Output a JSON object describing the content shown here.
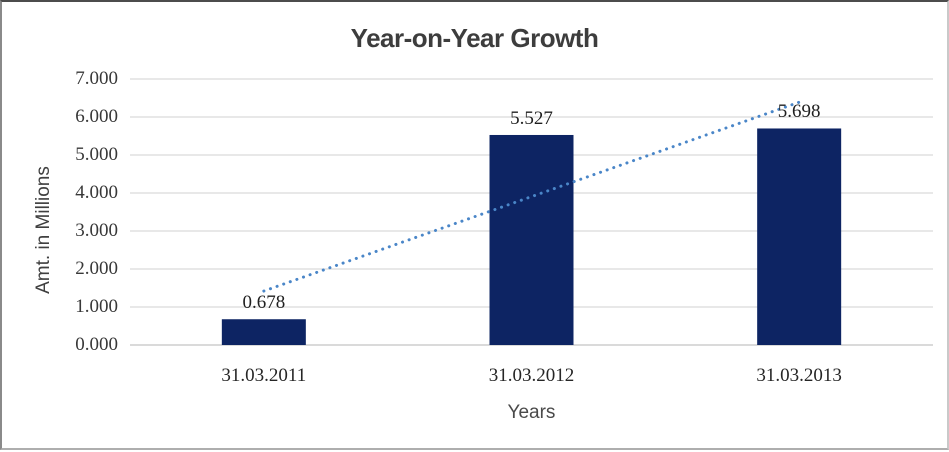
{
  "chart_data": {
    "type": "bar",
    "title": "Year-on-Year Growth",
    "xlabel": "Years",
    "ylabel": "Amt. in Millions",
    "categories": [
      "31.03.2011",
      "31.03.2012",
      "31.03.2013"
    ],
    "values": [
      0.678,
      5.527,
      5.698
    ],
    "data_labels": [
      "0.678",
      "5.527",
      "5.698"
    ],
    "ylim": [
      0,
      7
    ],
    "ytick_step": 1,
    "ytick_labels": [
      "0.000",
      "1.000",
      "2.000",
      "3.000",
      "4.000",
      "5.000",
      "6.000",
      "7.000"
    ],
    "grid": "horizontal-only",
    "legend": "none",
    "trendline": {
      "type": "linear",
      "style": "dotted",
      "start_value": 1.42,
      "end_value": 6.39
    },
    "colors": {
      "bar": "#0d2463",
      "trendline": "#4a86c8",
      "gridline": "#d9d9d9",
      "axis_line": "#c3c3c3",
      "title_text": "#3d3d3d",
      "tick_text": "#383838",
      "data_label_text": "#1f1f1f"
    }
  }
}
